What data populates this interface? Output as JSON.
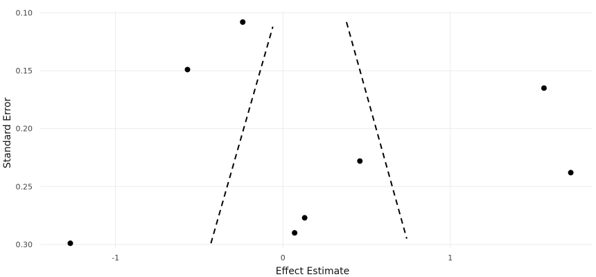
{
  "chart_data": {
    "type": "scatter",
    "title": "",
    "xlabel": "Effect Estimate",
    "ylabel": "Standard Error",
    "xlim": [
      -1.45,
      1.85
    ],
    "ylim": [
      0.0985,
      0.303
    ],
    "y_reversed": true,
    "grid": true,
    "legend": "none",
    "x_ticks": [
      {
        "value": -1,
        "label": "-1"
      },
      {
        "value": 0,
        "label": "0"
      },
      {
        "value": 1,
        "label": "1"
      }
    ],
    "y_ticks": [
      {
        "value": 0.1,
        "label": "0.10"
      },
      {
        "value": 0.15,
        "label": "0.15"
      },
      {
        "value": 0.2,
        "label": "0.20"
      },
      {
        "value": 0.25,
        "label": "0.25"
      },
      {
        "value": 0.3,
        "label": "0.30"
      }
    ],
    "points": [
      {
        "x": -1.27,
        "y": 0.299
      },
      {
        "x": -0.57,
        "y": 0.149
      },
      {
        "x": -0.24,
        "y": 0.108
      },
      {
        "x": 0.07,
        "y": 0.29
      },
      {
        "x": 0.13,
        "y": 0.277
      },
      {
        "x": 0.46,
        "y": 0.228
      },
      {
        "x": 1.56,
        "y": 0.165
      },
      {
        "x": 1.72,
        "y": 0.238
      }
    ],
    "funnel_lines": [
      {
        "points": [
          {
            "x": -0.43,
            "y": 0.299
          },
          {
            "x": -0.06,
            "y": 0.112
          }
        ]
      },
      {
        "points": [
          {
            "x": 0.38,
            "y": 0.108
          },
          {
            "x": 0.74,
            "y": 0.295
          }
        ]
      }
    ],
    "colors": {
      "points": "#000000",
      "funnel_lines": "#000000",
      "grid": "#ebebeb",
      "tick_text": "#444444",
      "axis_text": "#111111"
    }
  }
}
